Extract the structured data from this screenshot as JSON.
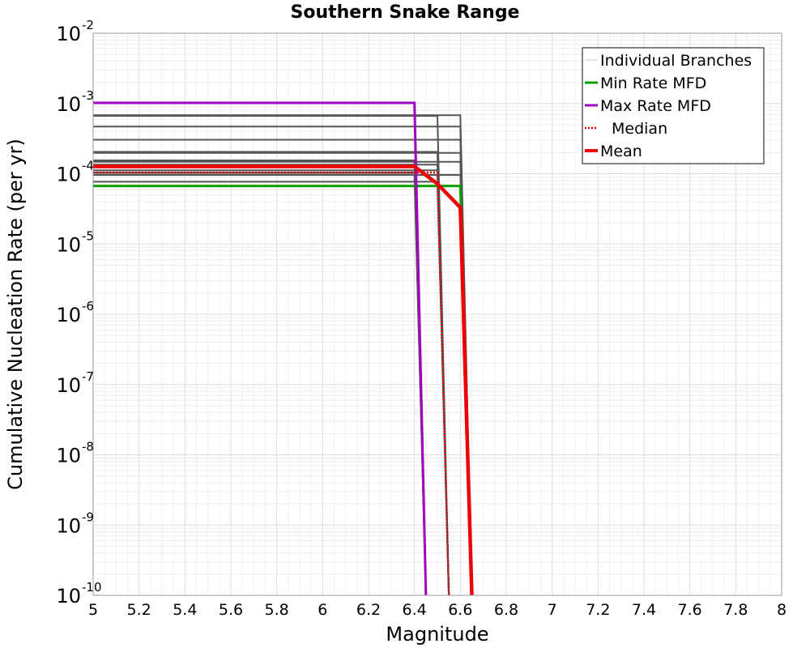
{
  "chart_data": {
    "type": "line",
    "title": "Southern Snake Range",
    "xlabel": "Magnitude",
    "ylabel": "Cumulative Nucleation Rate (per yr)",
    "xlim": [
      5,
      8
    ],
    "ylim": [
      1e-10,
      0.01
    ],
    "yscale": "log",
    "grid": true,
    "legend_position": "top-right",
    "x_ticks": [
      {
        "value": 5,
        "label": "5"
      },
      {
        "value": 5.2,
        "label": "5.2"
      },
      {
        "value": 5.4,
        "label": "5.4"
      },
      {
        "value": 5.6,
        "label": "5.6"
      },
      {
        "value": 5.8,
        "label": "5.8"
      },
      {
        "value": 6,
        "label": "6"
      },
      {
        "value": 6.2,
        "label": "6.2"
      },
      {
        "value": 6.4,
        "label": "6.4"
      },
      {
        "value": 6.6,
        "label": "6.6"
      },
      {
        "value": 6.8,
        "label": "6.8"
      },
      {
        "value": 7,
        "label": "7"
      },
      {
        "value": 7.2,
        "label": "7.2"
      },
      {
        "value": 7.4,
        "label": "7.4"
      },
      {
        "value": 7.6,
        "label": "7.6"
      },
      {
        "value": 7.8,
        "label": "7.8"
      },
      {
        "value": 8,
        "label": "8"
      }
    ],
    "y_ticks": [
      {
        "exp": -10,
        "base": "10",
        "exp_label": "-10"
      },
      {
        "exp": -9,
        "base": "10",
        "exp_label": "-9"
      },
      {
        "exp": -8,
        "base": "10",
        "exp_label": "-8"
      },
      {
        "exp": -7,
        "base": "10",
        "exp_label": "-7"
      },
      {
        "exp": -6,
        "base": "10",
        "exp_label": "-6"
      },
      {
        "exp": -5,
        "base": "10",
        "exp_label": "-5"
      },
      {
        "exp": -4,
        "base": "10",
        "exp_label": "-4"
      },
      {
        "exp": -3,
        "base": "10",
        "exp_label": "-3"
      },
      {
        "exp": -2,
        "base": "10",
        "exp_label": "-2"
      }
    ],
    "branches": [
      {
        "mmax": 6.6,
        "rate": 0.00068
      },
      {
        "mmax": 6.6,
        "rate": 0.00047
      },
      {
        "mmax": 6.6,
        "rate": 0.000305
      },
      {
        "mmax": 6.6,
        "rate": 0.000198
      },
      {
        "mmax": 6.6,
        "rate": 0.000148
      },
      {
        "mmax": 6.6,
        "rate": 9.6e-05
      },
      {
        "mmax": 6.5,
        "rate": 0.000665
      },
      {
        "mmax": 6.5,
        "rate": 0.000205
      },
      {
        "mmax": 6.5,
        "rate": 0.000135
      },
      {
        "mmax": 6.5,
        "rate": 0.000112
      },
      {
        "mmax": 6.5,
        "rate": 7.7e-05
      },
      {
        "mmax": 6.4,
        "rate": 0.000155
      },
      {
        "mmax": 6.4,
        "rate": 0.000104
      },
      {
        "mmax": 6.4,
        "rate": 9.7e-05
      }
    ],
    "series": [
      {
        "name": "Min Rate MFD",
        "color": "#00a000",
        "dash": "solid",
        "points": [
          [
            5,
            6.7e-05
          ],
          [
            6.6,
            6.7e-05
          ],
          [
            6.65,
            1e-10
          ]
        ]
      },
      {
        "name": "Max Rate MFD",
        "color": "#a000c0",
        "dash": "solid",
        "points": [
          [
            5,
            0.00102
          ],
          [
            6.4,
            0.00102
          ],
          [
            6.45,
            1e-10
          ]
        ]
      },
      {
        "name": "Median",
        "color": "#e00000",
        "dash": "dotted",
        "points": [
          [
            5,
            0.000104
          ],
          [
            6.4,
            0.000104
          ],
          [
            6.5,
            0.000104
          ],
          [
            6.55,
            1e-10
          ]
        ]
      },
      {
        "name": "Mean",
        "color": "#f00000",
        "dash": "solid",
        "points": [
          [
            5,
            0.000127
          ],
          [
            6.4,
            0.000127
          ],
          [
            6.5,
            7.2e-05
          ],
          [
            6.6,
            3.3e-05
          ],
          [
            6.65,
            1e-10
          ]
        ]
      }
    ],
    "legend": [
      {
        "label": "Individual Branches",
        "color": "#c8c8c8",
        "style": "thin"
      },
      {
        "label": "Min Rate MFD",
        "color": "#00a000",
        "style": "solid"
      },
      {
        "label": "Max Rate MFD",
        "color": "#a000c0",
        "style": "solid"
      },
      {
        "label": "Median",
        "color": "#e00000",
        "style": "dotted"
      },
      {
        "label": "Mean",
        "color": "#f00000",
        "style": "thick"
      }
    ]
  }
}
